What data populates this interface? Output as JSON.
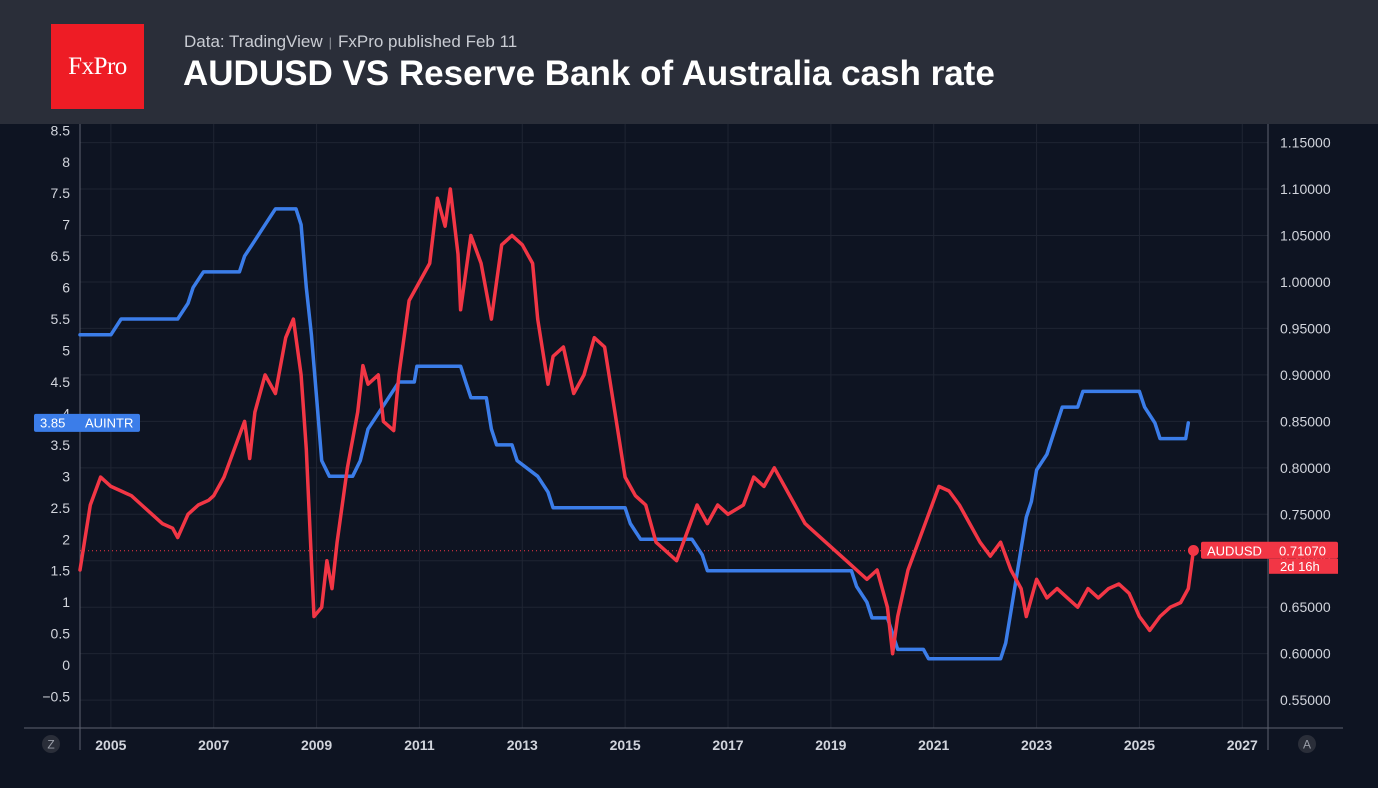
{
  "header": {
    "logo_text": "FxPro",
    "source_text": "Data: TradingView",
    "publish_text": "FxPro published Feb 11",
    "title": "AUDUSD VS Reserve Bank of Australia cash rate"
  },
  "chart_data": {
    "type": "line",
    "grid": true,
    "x_ticks": [
      "2005",
      "2007",
      "2009",
      "2011",
      "2013",
      "2015",
      "2017",
      "2019",
      "2021",
      "2023",
      "2025",
      "2027"
    ],
    "xlim": [
      2004.4,
      2027.5
    ],
    "left_axis": {
      "ticks": [
        "8.5",
        "8",
        "7.5",
        "7",
        "6.5",
        "6",
        "5.5",
        "5",
        "4.5",
        "4",
        "3.5",
        "3",
        "2.5",
        "2",
        "1.5",
        "1",
        "0.5",
        "0",
        "−0.5"
      ],
      "ylim": [
        -1.0,
        8.6
      ]
    },
    "right_axis": {
      "ticks": [
        "1.15000",
        "1.10000",
        "1.05000",
        "1.00000",
        "0.95000",
        "0.90000",
        "0.85000",
        "0.80000",
        "0.75000",
        "0.70000",
        "0.65000",
        "0.60000",
        "0.55000"
      ],
      "ylim": [
        0.52,
        1.17
      ]
    },
    "series": [
      {
        "name": "AUINTR",
        "axis": "left",
        "color": "#3b7de9",
        "last_label": "3.85",
        "points": [
          [
            2004.4,
            5.25
          ],
          [
            2005.0,
            5.25
          ],
          [
            2005.2,
            5.5
          ],
          [
            2006.3,
            5.5
          ],
          [
            2006.5,
            5.75
          ],
          [
            2006.6,
            6.0
          ],
          [
            2006.8,
            6.25
          ],
          [
            2007.5,
            6.25
          ],
          [
            2007.6,
            6.5
          ],
          [
            2007.8,
            6.75
          ],
          [
            2008.0,
            7.0
          ],
          [
            2008.2,
            7.25
          ],
          [
            2008.6,
            7.25
          ],
          [
            2008.7,
            7.0
          ],
          [
            2008.8,
            6.0
          ],
          [
            2008.9,
            5.25
          ],
          [
            2009.0,
            4.25
          ],
          [
            2009.1,
            3.25
          ],
          [
            2009.25,
            3.0
          ],
          [
            2009.7,
            3.0
          ],
          [
            2009.85,
            3.25
          ],
          [
            2010.0,
            3.75
          ],
          [
            2010.2,
            4.0
          ],
          [
            2010.4,
            4.25
          ],
          [
            2010.6,
            4.5
          ],
          [
            2010.9,
            4.5
          ],
          [
            2010.95,
            4.75
          ],
          [
            2011.8,
            4.75
          ],
          [
            2011.9,
            4.5
          ],
          [
            2012.0,
            4.25
          ],
          [
            2012.3,
            4.25
          ],
          [
            2012.4,
            3.75
          ],
          [
            2012.5,
            3.5
          ],
          [
            2012.8,
            3.5
          ],
          [
            2012.9,
            3.25
          ],
          [
            2013.3,
            3.0
          ],
          [
            2013.5,
            2.75
          ],
          [
            2013.6,
            2.5
          ],
          [
            2015.0,
            2.5
          ],
          [
            2015.1,
            2.25
          ],
          [
            2015.3,
            2.0
          ],
          [
            2016.3,
            2.0
          ],
          [
            2016.5,
            1.75
          ],
          [
            2016.6,
            1.5
          ],
          [
            2019.4,
            1.5
          ],
          [
            2019.5,
            1.25
          ],
          [
            2019.7,
            1.0
          ],
          [
            2019.8,
            0.75
          ],
          [
            2020.1,
            0.75
          ],
          [
            2020.2,
            0.5
          ],
          [
            2020.3,
            0.25
          ],
          [
            2020.8,
            0.25
          ],
          [
            2020.9,
            0.1
          ],
          [
            2022.3,
            0.1
          ],
          [
            2022.4,
            0.35
          ],
          [
            2022.5,
            0.85
          ],
          [
            2022.6,
            1.35
          ],
          [
            2022.7,
            1.85
          ],
          [
            2022.8,
            2.35
          ],
          [
            2022.9,
            2.6
          ],
          [
            2023.0,
            3.1
          ],
          [
            2023.2,
            3.35
          ],
          [
            2023.3,
            3.6
          ],
          [
            2023.4,
            3.85
          ],
          [
            2023.5,
            4.1
          ],
          [
            2023.8,
            4.1
          ],
          [
            2023.9,
            4.35
          ],
          [
            2025.0,
            4.35
          ],
          [
            2025.1,
            4.1
          ],
          [
            2025.3,
            3.85
          ],
          [
            2025.4,
            3.6
          ],
          [
            2025.9,
            3.6
          ],
          [
            2025.95,
            3.85
          ]
        ]
      },
      {
        "name": "AUDUSD",
        "axis": "right",
        "color": "#f23645",
        "last_label": "0.71070",
        "countdown": "2d 16h",
        "points": [
          [
            2004.4,
            0.69
          ],
          [
            2004.6,
            0.76
          ],
          [
            2004.8,
            0.79
          ],
          [
            2005.0,
            0.78
          ],
          [
            2005.2,
            0.775
          ],
          [
            2005.4,
            0.77
          ],
          [
            2005.6,
            0.76
          ],
          [
            2005.8,
            0.75
          ],
          [
            2006.0,
            0.74
          ],
          [
            2006.2,
            0.735
          ],
          [
            2006.3,
            0.725
          ],
          [
            2006.5,
            0.75
          ],
          [
            2006.7,
            0.76
          ],
          [
            2006.9,
            0.765
          ],
          [
            2007.0,
            0.77
          ],
          [
            2007.2,
            0.79
          ],
          [
            2007.4,
            0.82
          ],
          [
            2007.6,
            0.85
          ],
          [
            2007.7,
            0.81
          ],
          [
            2007.8,
            0.86
          ],
          [
            2008.0,
            0.9
          ],
          [
            2008.2,
            0.88
          ],
          [
            2008.4,
            0.94
          ],
          [
            2008.55,
            0.96
          ],
          [
            2008.7,
            0.9
          ],
          [
            2008.8,
            0.82
          ],
          [
            2008.9,
            0.7
          ],
          [
            2008.95,
            0.64
          ],
          [
            2009.1,
            0.65
          ],
          [
            2009.2,
            0.7
          ],
          [
            2009.3,
            0.67
          ],
          [
            2009.4,
            0.72
          ],
          [
            2009.6,
            0.8
          ],
          [
            2009.8,
            0.86
          ],
          [
            2009.9,
            0.91
          ],
          [
            2010.0,
            0.89
          ],
          [
            2010.2,
            0.9
          ],
          [
            2010.3,
            0.85
          ],
          [
            2010.5,
            0.84
          ],
          [
            2010.6,
            0.9
          ],
          [
            2010.8,
            0.98
          ],
          [
            2011.0,
            1.0
          ],
          [
            2011.2,
            1.02
          ],
          [
            2011.35,
            1.09
          ],
          [
            2011.5,
            1.06
          ],
          [
            2011.6,
            1.1
          ],
          [
            2011.75,
            1.03
          ],
          [
            2011.8,
            0.97
          ],
          [
            2012.0,
            1.05
          ],
          [
            2012.2,
            1.02
          ],
          [
            2012.4,
            0.96
          ],
          [
            2012.6,
            1.04
          ],
          [
            2012.8,
            1.05
          ],
          [
            2013.0,
            1.04
          ],
          [
            2013.2,
            1.02
          ],
          [
            2013.3,
            0.96
          ],
          [
            2013.5,
            0.89
          ],
          [
            2013.6,
            0.92
          ],
          [
            2013.8,
            0.93
          ],
          [
            2014.0,
            0.88
          ],
          [
            2014.2,
            0.9
          ],
          [
            2014.4,
            0.94
          ],
          [
            2014.6,
            0.93
          ],
          [
            2014.8,
            0.86
          ],
          [
            2015.0,
            0.79
          ],
          [
            2015.2,
            0.77
          ],
          [
            2015.4,
            0.76
          ],
          [
            2015.6,
            0.72
          ],
          [
            2015.8,
            0.71
          ],
          [
            2016.0,
            0.7
          ],
          [
            2016.2,
            0.73
          ],
          [
            2016.4,
            0.76
          ],
          [
            2016.6,
            0.74
          ],
          [
            2016.8,
            0.76
          ],
          [
            2017.0,
            0.75
          ],
          [
            2017.3,
            0.76
          ],
          [
            2017.5,
            0.79
          ],
          [
            2017.7,
            0.78
          ],
          [
            2017.9,
            0.8
          ],
          [
            2018.1,
            0.78
          ],
          [
            2018.3,
            0.76
          ],
          [
            2018.5,
            0.74
          ],
          [
            2018.7,
            0.73
          ],
          [
            2018.9,
            0.72
          ],
          [
            2019.1,
            0.71
          ],
          [
            2019.3,
            0.7
          ],
          [
            2019.5,
            0.69
          ],
          [
            2019.7,
            0.68
          ],
          [
            2019.9,
            0.69
          ],
          [
            2020.1,
            0.65
          ],
          [
            2020.2,
            0.6
          ],
          [
            2020.3,
            0.64
          ],
          [
            2020.5,
            0.69
          ],
          [
            2020.7,
            0.72
          ],
          [
            2020.9,
            0.75
          ],
          [
            2021.1,
            0.78
          ],
          [
            2021.3,
            0.775
          ],
          [
            2021.5,
            0.76
          ],
          [
            2021.7,
            0.74
          ],
          [
            2021.9,
            0.72
          ],
          [
            2022.1,
            0.705
          ],
          [
            2022.3,
            0.72
          ],
          [
            2022.5,
            0.69
          ],
          [
            2022.7,
            0.67
          ],
          [
            2022.8,
            0.64
          ],
          [
            2023.0,
            0.68
          ],
          [
            2023.2,
            0.66
          ],
          [
            2023.4,
            0.67
          ],
          [
            2023.6,
            0.66
          ],
          [
            2023.8,
            0.65
          ],
          [
            2024.0,
            0.67
          ],
          [
            2024.2,
            0.66
          ],
          [
            2024.4,
            0.67
          ],
          [
            2024.6,
            0.675
          ],
          [
            2024.8,
            0.665
          ],
          [
            2025.0,
            0.64
          ],
          [
            2025.2,
            0.625
          ],
          [
            2025.4,
            0.64
          ],
          [
            2025.6,
            0.65
          ],
          [
            2025.8,
            0.655
          ],
          [
            2025.95,
            0.67
          ],
          [
            2026.05,
            0.711
          ]
        ]
      }
    ],
    "reference_line": {
      "axis": "right",
      "value": 0.7107
    },
    "corner_labels": {
      "left": "Z",
      "right": "A"
    }
  }
}
